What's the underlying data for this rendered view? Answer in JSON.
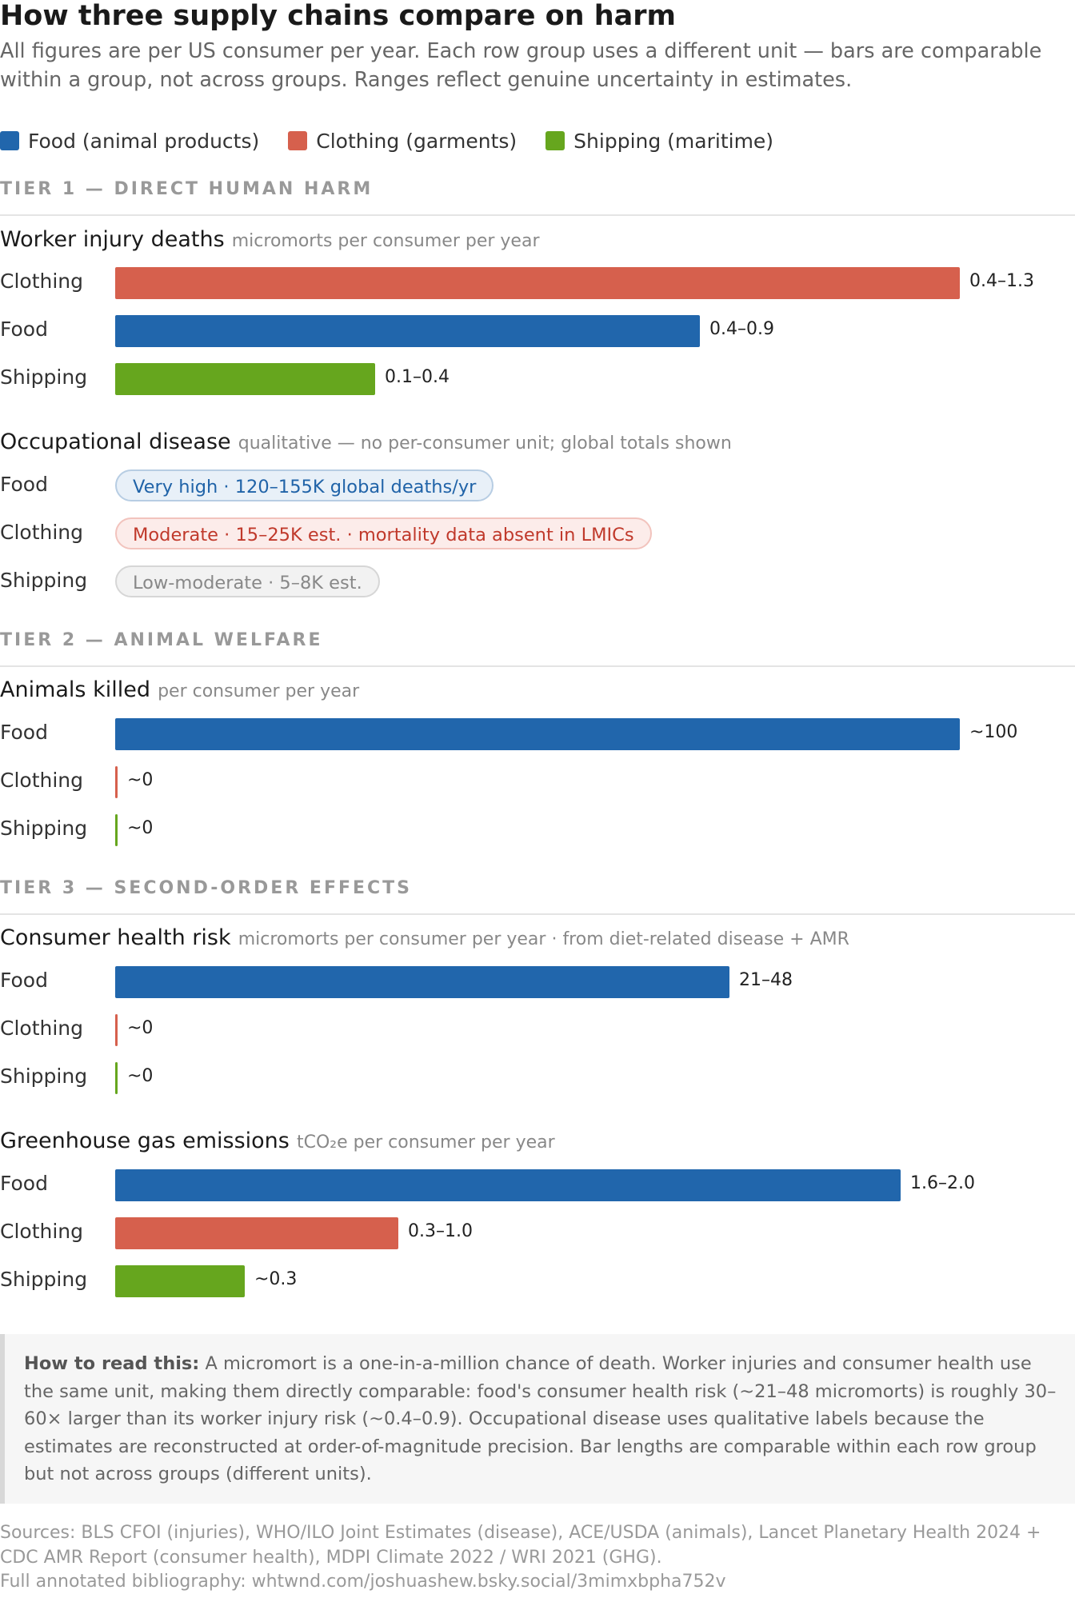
{
  "header": {
    "title": "How three supply chains compare on harm",
    "subtitle": "All figures are per US consumer per year. Each row group uses a different unit — bars are comparable within a group, not across groups. Ranges reflect genuine uncertainty in estimates."
  },
  "legend": [
    {
      "label": "Food (animal products)",
      "color": "#2166ac"
    },
    {
      "label": "Clothing (garments)",
      "color": "#d6604d"
    },
    {
      "label": "Shipping (maritime)",
      "color": "#66a61e"
    }
  ],
  "colors": {
    "Food": "#2166ac",
    "Clothing": "#d6604d",
    "Shipping": "#66a61e"
  },
  "tiers": {
    "t1": "TIER 1 — DIRECT HUMAN HARM",
    "t2": "TIER 2 — ANIMAL WELFARE",
    "t3": "TIER 3 — SECOND-ORDER EFFECTS"
  },
  "chart_data": [
    {
      "type": "bar",
      "tier": "TIER 1 — DIRECT HUMAN HARM",
      "title": "Worker injury deaths",
      "unit": "micromorts per consumer per year",
      "categories": [
        "Clothing",
        "Food",
        "Shipping"
      ],
      "values": [
        1.3,
        0.9,
        0.4
      ],
      "range_labels": [
        "0.4–1.3",
        "0.4–0.9",
        "0.1–0.4"
      ],
      "xlim": [
        0,
        1.3
      ]
    },
    {
      "type": "table",
      "tier": "TIER 1 — DIRECT HUMAN HARM",
      "title": "Occupational disease",
      "unit": "qualitative — no per-consumer unit; global totals shown",
      "categories": [
        "Food",
        "Clothing",
        "Shipping"
      ],
      "labels": [
        "Very high · 120–155K global deaths/yr",
        "Moderate · 15–25K est. · mortality data absent in LMICs",
        "Low-moderate · 5–8K est."
      ]
    },
    {
      "type": "bar",
      "tier": "TIER 2 — ANIMAL WELFARE",
      "title": "Animals killed",
      "unit": "per consumer per year",
      "categories": [
        "Food",
        "Clothing",
        "Shipping"
      ],
      "values": [
        100,
        0,
        0
      ],
      "range_labels": [
        "~100",
        "~0",
        "~0"
      ],
      "xlim": [
        0,
        100
      ]
    },
    {
      "type": "bar",
      "tier": "TIER 3 — SECOND-ORDER EFFECTS",
      "title": "Consumer health risk",
      "unit": "micromorts per consumer per year · from diet-related disease + AMR",
      "categories": [
        "Food",
        "Clothing",
        "Shipping"
      ],
      "values": [
        48,
        0,
        0
      ],
      "range_labels": [
        "21–48",
        "~0",
        "~0"
      ],
      "xlim": [
        0,
        66
      ]
    },
    {
      "type": "bar",
      "tier": "TIER 3 — SECOND-ORDER EFFECTS",
      "title": "Greenhouse gas emissions",
      "unit": "tCO₂e per consumer per year",
      "categories": [
        "Food",
        "Clothing",
        "Shipping"
      ],
      "values": [
        2.0,
        0.72,
        0.33
      ],
      "range_labels": [
        "1.6–2.0",
        "0.3–1.0",
        "~0.3"
      ],
      "xlim": [
        0,
        2.15
      ]
    }
  ],
  "note": {
    "lead": "How to read this:",
    "body": "A micromort is a one-in-a-million chance of death. Worker injuries and consumer health use the same unit, making them directly comparable: food's consumer health risk (~21–48 micromorts) is roughly 30–60× larger than its worker injury risk (~0.4–0.9). Occupational disease uses qualitative labels because the estimates are reconstructed at order-of-magnitude precision. Bar lengths are comparable within each row group but not across groups (different units)."
  },
  "sources": {
    "line1": "Sources: BLS CFOI (injuries), WHO/ILO Joint Estimates (disease), ACE/USDA (animals), Lancet Planetary Health 2024 + CDC AMR Report (consumer health), MDPI Climate 2022 / WRI 2021 (GHG).",
    "line2": "Full annotated bibliography: whtwnd.com/joshuashew.bsky.social/3mimxbpha752v"
  }
}
